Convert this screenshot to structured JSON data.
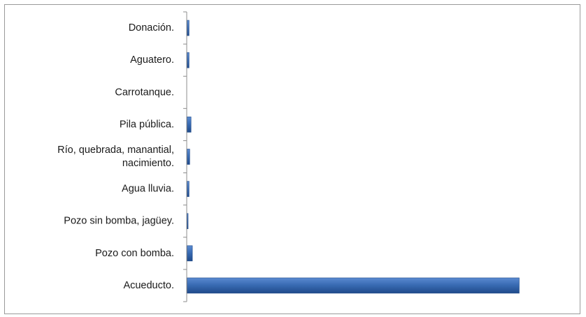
{
  "chart_data": {
    "type": "bar",
    "orientation": "horizontal",
    "categories": [
      "Acueducto.",
      "Pozo con bomba.",
      "Pozo sin bomba, jagüey.",
      "Agua lluvia.",
      "Río, quebrada, manantial, nacimiento.",
      "Pila pública.",
      "Carrotanque.",
      "Aguatero.",
      "Donación."
    ],
    "category_lines": [
      [
        "Acueducto."
      ],
      [
        "Pozo con bomba."
      ],
      [
        "Pozo sin bomba, jagüey."
      ],
      [
        "Agua lluvia."
      ],
      [
        "Río, quebrada, manantial,",
        "nacimiento."
      ],
      [
        "Pila pública."
      ],
      [
        "Carrotanque."
      ],
      [
        "Aguatero."
      ],
      [
        "Donación."
      ]
    ],
    "values": [
      100,
      1.6,
      0.3,
      0.6,
      0.8,
      1.2,
      0,
      0.6,
      0.6
    ],
    "xlim": [
      0,
      100
    ],
    "title": "",
    "xlabel": "",
    "ylabel": "",
    "grid": false,
    "legend": "none",
    "bar_color": "#3a6cb4",
    "bar_color_dark": "#1f4a8a",
    "axis_color": "#8c8c8c"
  }
}
